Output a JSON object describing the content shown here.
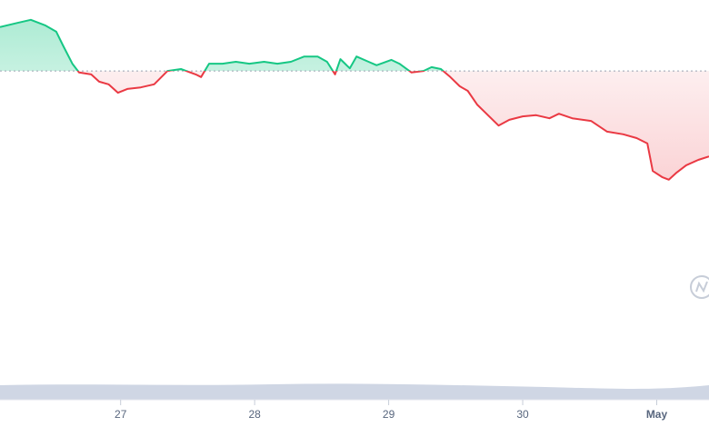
{
  "chart_data": {
    "type": "line",
    "x": [
      26.1,
      26.23,
      26.33,
      26.44,
      26.52,
      26.57,
      26.64,
      26.69,
      26.78,
      26.84,
      26.91,
      26.98,
      27.05,
      27.15,
      27.25,
      27.35,
      27.45,
      27.56,
      27.6,
      27.66,
      27.76,
      27.86,
      27.96,
      28.07,
      28.17,
      28.27,
      28.37,
      28.47,
      28.54,
      28.6,
      28.64,
      28.71,
      28.76,
      28.85,
      28.91,
      29.02,
      29.08,
      29.17,
      29.26,
      29.32,
      29.39,
      29.46,
      29.53,
      29.59,
      29.66,
      29.73,
      29.82,
      29.9,
      30.0,
      30.1,
      30.2,
      30.27,
      30.37,
      30.51,
      30.63,
      30.75,
      30.85,
      30.93,
      30.97,
      31.04,
      31.09,
      31.15,
      31.22,
      31.31,
      31.39
    ],
    "values": [
      92.9,
      94.0,
      94.8,
      93.3,
      91.7,
      88.1,
      83.3,
      81.0,
      80.5,
      78.6,
      77.9,
      75.7,
      76.7,
      77.1,
      77.9,
      81.4,
      81.9,
      80.5,
      79.8,
      83.3,
      83.3,
      83.8,
      83.3,
      83.8,
      83.3,
      83.8,
      85.2,
      85.2,
      83.8,
      80.5,
      84.5,
      82.1,
      85.2,
      83.8,
      82.9,
      84.3,
      83.3,
      81.0,
      81.4,
      82.4,
      81.9,
      79.8,
      77.4,
      76.2,
      72.6,
      70.2,
      67.1,
      68.6,
      69.5,
      69.8,
      69.0,
      70.2,
      69.0,
      68.3,
      65.5,
      64.8,
      63.8,
      62.4,
      55.2,
      53.6,
      52.9,
      54.8,
      56.7,
      58.1,
      59.0
    ],
    "baseline": 81.4,
    "up_color": "#16c784",
    "down_color": "#ea3943",
    "xlim": [
      26.1,
      31.39
    ],
    "xticks": [
      27,
      28,
      29,
      30,
      {
        "value": 31,
        "label": "May"
      }
    ],
    "ylim": [
      0,
      100
    ]
  }
}
